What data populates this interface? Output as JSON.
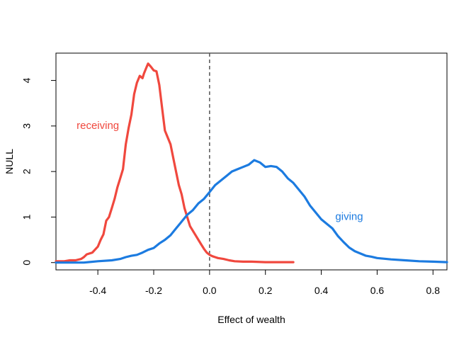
{
  "chart_data": {
    "type": "line",
    "title": "",
    "xlabel": "Effect of wealth",
    "ylabel": "NULL",
    "xlim": [
      -0.55,
      0.85
    ],
    "ylim": [
      -0.16,
      4.6
    ],
    "x_ticks": [
      -0.4,
      -0.2,
      0.0,
      0.2,
      0.4,
      0.6,
      0.8
    ],
    "x_tick_labels": [
      "-0.4",
      "-0.2",
      "0.0",
      "0.2",
      "0.4",
      "0.6",
      "0.8"
    ],
    "y_ticks": [
      0,
      1,
      2,
      3,
      4
    ],
    "y_tick_labels": [
      "0",
      "1",
      "2",
      "3",
      "4"
    ],
    "grid": false,
    "reference_line": {
      "x": 0,
      "style": "dashed",
      "color": "#555555"
    },
    "series": [
      {
        "name": "receiving",
        "color": "#f0483e",
        "label_pos": [
          -0.4,
          3.0
        ],
        "x": [
          -0.55,
          -0.52,
          -0.5,
          -0.48,
          -0.46,
          -0.45,
          -0.44,
          -0.42,
          -0.4,
          -0.39,
          -0.38,
          -0.37,
          -0.36,
          -0.35,
          -0.34,
          -0.33,
          -0.32,
          -0.31,
          -0.3,
          -0.29,
          -0.28,
          -0.27,
          -0.26,
          -0.25,
          -0.24,
          -0.235,
          -0.225,
          -0.22,
          -0.21,
          -0.2,
          -0.19,
          -0.18,
          -0.17,
          -0.16,
          -0.15,
          -0.14,
          -0.13,
          -0.12,
          -0.11,
          -0.1,
          -0.09,
          -0.08,
          -0.07,
          -0.06,
          -0.05,
          -0.04,
          -0.03,
          -0.02,
          -0.01,
          0.0,
          0.01,
          0.02,
          0.03,
          0.05,
          0.07,
          0.09,
          0.12,
          0.15,
          0.2,
          0.25,
          0.3
        ],
        "y": [
          0.03,
          0.03,
          0.05,
          0.05,
          0.08,
          0.12,
          0.18,
          0.22,
          0.35,
          0.5,
          0.62,
          0.92,
          1.0,
          1.2,
          1.4,
          1.65,
          1.85,
          2.05,
          2.6,
          2.95,
          3.25,
          3.7,
          3.95,
          4.1,
          4.05,
          4.15,
          4.3,
          4.37,
          4.3,
          4.22,
          4.2,
          3.9,
          3.4,
          2.9,
          2.75,
          2.6,
          2.3,
          2.0,
          1.7,
          1.5,
          1.2,
          1.0,
          0.8,
          0.7,
          0.6,
          0.5,
          0.4,
          0.3,
          0.22,
          0.17,
          0.14,
          0.12,
          0.1,
          0.08,
          0.05,
          0.03,
          0.02,
          0.02,
          0.01,
          0.01,
          0.01
        ]
      },
      {
        "name": "giving",
        "color": "#1c7be0",
        "label_pos": [
          0.5,
          1.0
        ],
        "x": [
          -0.55,
          -0.5,
          -0.45,
          -0.4,
          -0.35,
          -0.32,
          -0.3,
          -0.28,
          -0.26,
          -0.24,
          -0.22,
          -0.2,
          -0.18,
          -0.16,
          -0.14,
          -0.12,
          -0.1,
          -0.08,
          -0.06,
          -0.04,
          -0.02,
          0.0,
          0.02,
          0.04,
          0.06,
          0.08,
          0.1,
          0.12,
          0.14,
          0.16,
          0.18,
          0.2,
          0.22,
          0.24,
          0.26,
          0.28,
          0.3,
          0.32,
          0.34,
          0.36,
          0.38,
          0.4,
          0.42,
          0.44,
          0.46,
          0.48,
          0.5,
          0.52,
          0.54,
          0.56,
          0.58,
          0.6,
          0.65,
          0.7,
          0.75,
          0.8,
          0.85
        ],
        "y": [
          0.0,
          0.0,
          0.0,
          0.03,
          0.05,
          0.08,
          0.12,
          0.15,
          0.17,
          0.22,
          0.28,
          0.32,
          0.42,
          0.5,
          0.6,
          0.75,
          0.9,
          1.05,
          1.15,
          1.3,
          1.4,
          1.55,
          1.7,
          1.8,
          1.9,
          2.0,
          2.05,
          2.1,
          2.15,
          2.25,
          2.2,
          2.1,
          2.12,
          2.1,
          2.0,
          1.85,
          1.75,
          1.6,
          1.45,
          1.25,
          1.1,
          0.95,
          0.85,
          0.75,
          0.58,
          0.45,
          0.33,
          0.25,
          0.2,
          0.15,
          0.13,
          0.1,
          0.07,
          0.05,
          0.03,
          0.02,
          0.01
        ]
      }
    ]
  }
}
